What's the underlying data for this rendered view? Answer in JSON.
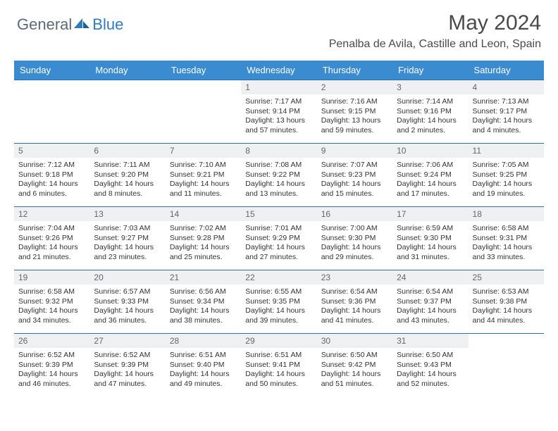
{
  "brand": {
    "part1": "General",
    "part2": "Blue"
  },
  "title": "May 2024",
  "location": "Penalba de Avila, Castille and Leon, Spain",
  "colors": {
    "header_bg": "#3b8bd0",
    "header_text": "#ffffff",
    "row_border": "#2f6fa8",
    "daynum_bg": "#eef0f2",
    "daynum_text": "#666666",
    "body_text": "#333333",
    "brand_gray": "#5c6a78",
    "brand_blue": "#2f7bbf",
    "page_bg": "#ffffff"
  },
  "weekdays": [
    "Sunday",
    "Monday",
    "Tuesday",
    "Wednesday",
    "Thursday",
    "Friday",
    "Saturday"
  ],
  "weeks": [
    [
      null,
      null,
      null,
      {
        "n": "1",
        "sr": "7:17 AM",
        "ss": "9:14 PM",
        "dl": "13 hours and 57 minutes."
      },
      {
        "n": "2",
        "sr": "7:16 AM",
        "ss": "9:15 PM",
        "dl": "13 hours and 59 minutes."
      },
      {
        "n": "3",
        "sr": "7:14 AM",
        "ss": "9:16 PM",
        "dl": "14 hours and 2 minutes."
      },
      {
        "n": "4",
        "sr": "7:13 AM",
        "ss": "9:17 PM",
        "dl": "14 hours and 4 minutes."
      }
    ],
    [
      {
        "n": "5",
        "sr": "7:12 AM",
        "ss": "9:18 PM",
        "dl": "14 hours and 6 minutes."
      },
      {
        "n": "6",
        "sr": "7:11 AM",
        "ss": "9:20 PM",
        "dl": "14 hours and 8 minutes."
      },
      {
        "n": "7",
        "sr": "7:10 AM",
        "ss": "9:21 PM",
        "dl": "14 hours and 11 minutes."
      },
      {
        "n": "8",
        "sr": "7:08 AM",
        "ss": "9:22 PM",
        "dl": "14 hours and 13 minutes."
      },
      {
        "n": "9",
        "sr": "7:07 AM",
        "ss": "9:23 PM",
        "dl": "14 hours and 15 minutes."
      },
      {
        "n": "10",
        "sr": "7:06 AM",
        "ss": "9:24 PM",
        "dl": "14 hours and 17 minutes."
      },
      {
        "n": "11",
        "sr": "7:05 AM",
        "ss": "9:25 PM",
        "dl": "14 hours and 19 minutes."
      }
    ],
    [
      {
        "n": "12",
        "sr": "7:04 AM",
        "ss": "9:26 PM",
        "dl": "14 hours and 21 minutes."
      },
      {
        "n": "13",
        "sr": "7:03 AM",
        "ss": "9:27 PM",
        "dl": "14 hours and 23 minutes."
      },
      {
        "n": "14",
        "sr": "7:02 AM",
        "ss": "9:28 PM",
        "dl": "14 hours and 25 minutes."
      },
      {
        "n": "15",
        "sr": "7:01 AM",
        "ss": "9:29 PM",
        "dl": "14 hours and 27 minutes."
      },
      {
        "n": "16",
        "sr": "7:00 AM",
        "ss": "9:30 PM",
        "dl": "14 hours and 29 minutes."
      },
      {
        "n": "17",
        "sr": "6:59 AM",
        "ss": "9:30 PM",
        "dl": "14 hours and 31 minutes."
      },
      {
        "n": "18",
        "sr": "6:58 AM",
        "ss": "9:31 PM",
        "dl": "14 hours and 33 minutes."
      }
    ],
    [
      {
        "n": "19",
        "sr": "6:58 AM",
        "ss": "9:32 PM",
        "dl": "14 hours and 34 minutes."
      },
      {
        "n": "20",
        "sr": "6:57 AM",
        "ss": "9:33 PM",
        "dl": "14 hours and 36 minutes."
      },
      {
        "n": "21",
        "sr": "6:56 AM",
        "ss": "9:34 PM",
        "dl": "14 hours and 38 minutes."
      },
      {
        "n": "22",
        "sr": "6:55 AM",
        "ss": "9:35 PM",
        "dl": "14 hours and 39 minutes."
      },
      {
        "n": "23",
        "sr": "6:54 AM",
        "ss": "9:36 PM",
        "dl": "14 hours and 41 minutes."
      },
      {
        "n": "24",
        "sr": "6:54 AM",
        "ss": "9:37 PM",
        "dl": "14 hours and 43 minutes."
      },
      {
        "n": "25",
        "sr": "6:53 AM",
        "ss": "9:38 PM",
        "dl": "14 hours and 44 minutes."
      }
    ],
    [
      {
        "n": "26",
        "sr": "6:52 AM",
        "ss": "9:39 PM",
        "dl": "14 hours and 46 minutes."
      },
      {
        "n": "27",
        "sr": "6:52 AM",
        "ss": "9:39 PM",
        "dl": "14 hours and 47 minutes."
      },
      {
        "n": "28",
        "sr": "6:51 AM",
        "ss": "9:40 PM",
        "dl": "14 hours and 49 minutes."
      },
      {
        "n": "29",
        "sr": "6:51 AM",
        "ss": "9:41 PM",
        "dl": "14 hours and 50 minutes."
      },
      {
        "n": "30",
        "sr": "6:50 AM",
        "ss": "9:42 PM",
        "dl": "14 hours and 51 minutes."
      },
      {
        "n": "31",
        "sr": "6:50 AM",
        "ss": "9:43 PM",
        "dl": "14 hours and 52 minutes."
      },
      null
    ]
  ],
  "labels": {
    "sunrise": "Sunrise:",
    "sunset": "Sunset:",
    "daylight": "Daylight:"
  }
}
